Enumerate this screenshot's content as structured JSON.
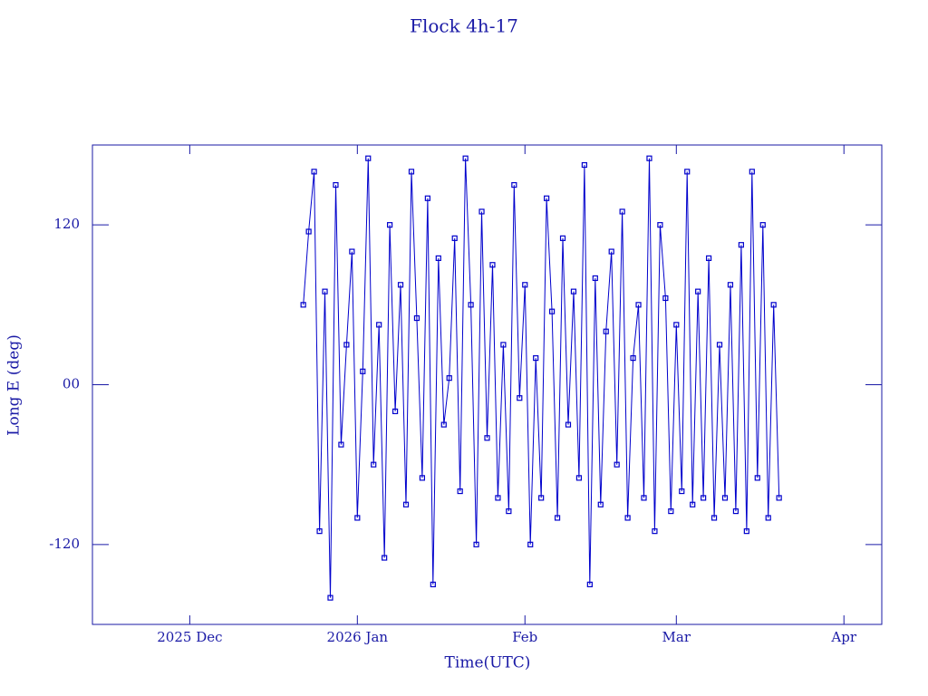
{
  "chart_data": {
    "type": "line",
    "title": "Flock 4h-17",
    "x_label": "Time(UTC)",
    "y_label": "Long E (deg)",
    "color": "#0000cc",
    "xlim": [
      "2025-11-13",
      "2026-04-08"
    ],
    "xticks": [
      {
        "value": "2025-12-01",
        "label": "2025 Dec"
      },
      {
        "value": "2026-01-01",
        "label": "2026 Jan"
      },
      {
        "value": "2026-02-01",
        "label": "Feb"
      },
      {
        "value": "2026-03-01",
        "label": "Mar"
      },
      {
        "value": "2026-04-01",
        "label": "Apr"
      }
    ],
    "ylim": [
      -180,
      180
    ],
    "yticks": [
      -120,
      {
        "value": 0,
        "label": "00"
      },
      120
    ],
    "x": [
      "2025-12-22",
      "2025-12-23",
      "2025-12-24",
      "2025-12-25",
      "2025-12-26",
      "2025-12-27",
      "2025-12-28",
      "2025-12-29",
      "2025-12-30",
      "2025-12-31",
      "2026-01-01",
      "2026-01-02",
      "2026-01-03",
      "2026-01-04",
      "2026-01-05",
      "2026-01-06",
      "2026-01-07",
      "2026-01-08",
      "2026-01-09",
      "2026-01-10",
      "2026-01-11",
      "2026-01-12",
      "2026-01-13",
      "2026-01-14",
      "2026-01-15",
      "2026-01-16",
      "2026-01-17",
      "2026-01-18",
      "2026-01-19",
      "2026-01-20",
      "2026-01-21",
      "2026-01-22",
      "2026-01-23",
      "2026-01-24",
      "2026-01-25",
      "2026-01-26",
      "2026-01-27",
      "2026-01-28",
      "2026-01-29",
      "2026-01-30",
      "2026-01-31",
      "2026-02-01",
      "2026-02-02",
      "2026-02-03",
      "2026-02-04",
      "2026-02-05",
      "2026-02-06",
      "2026-02-07",
      "2026-02-08",
      "2026-02-09",
      "2026-02-10",
      "2026-02-11",
      "2026-02-12",
      "2026-02-13",
      "2026-02-14",
      "2026-02-15",
      "2026-02-16",
      "2026-02-17",
      "2026-02-18",
      "2026-02-19",
      "2026-02-20",
      "2026-02-21",
      "2026-02-22",
      "2026-02-23",
      "2026-02-24",
      "2026-02-25",
      "2026-02-26",
      "2026-02-27",
      "2026-02-28",
      "2026-03-01",
      "2026-03-02",
      "2026-03-03",
      "2026-03-04",
      "2026-03-05",
      "2026-03-06",
      "2026-03-07",
      "2026-03-08",
      "2026-03-09",
      "2026-03-10",
      "2026-03-11",
      "2026-03-12",
      "2026-03-13",
      "2026-03-14",
      "2026-03-15",
      "2026-03-16",
      "2026-03-17",
      "2026-03-18",
      "2026-03-19",
      "2026-03-20"
    ],
    "values": [
      60,
      115,
      160,
      -110,
      70,
      -160,
      150,
      -45,
      30,
      100,
      -100,
      10,
      170,
      -60,
      45,
      -130,
      120,
      -20,
      75,
      -90,
      160,
      50,
      -70,
      140,
      -150,
      95,
      -30,
      5,
      110,
      -80,
      170,
      60,
      -120,
      130,
      -40,
      90,
      -85,
      30,
      -95,
      150,
      -10,
      75,
      -120,
      20,
      -85,
      140,
      55,
      -100,
      110,
      -30,
      70,
      -70,
      165,
      -150,
      80,
      -90,
      40,
      100,
      -60,
      130,
      -100,
      20,
      60,
      -85,
      170,
      -110,
      120,
      65,
      -95,
      45,
      -80,
      160,
      -90,
      70,
      -85,
      95,
      -100,
      30,
      -85,
      75,
      -95,
      105,
      -110,
      160,
      -70,
      120,
      -100,
      60,
      -85
    ]
  }
}
